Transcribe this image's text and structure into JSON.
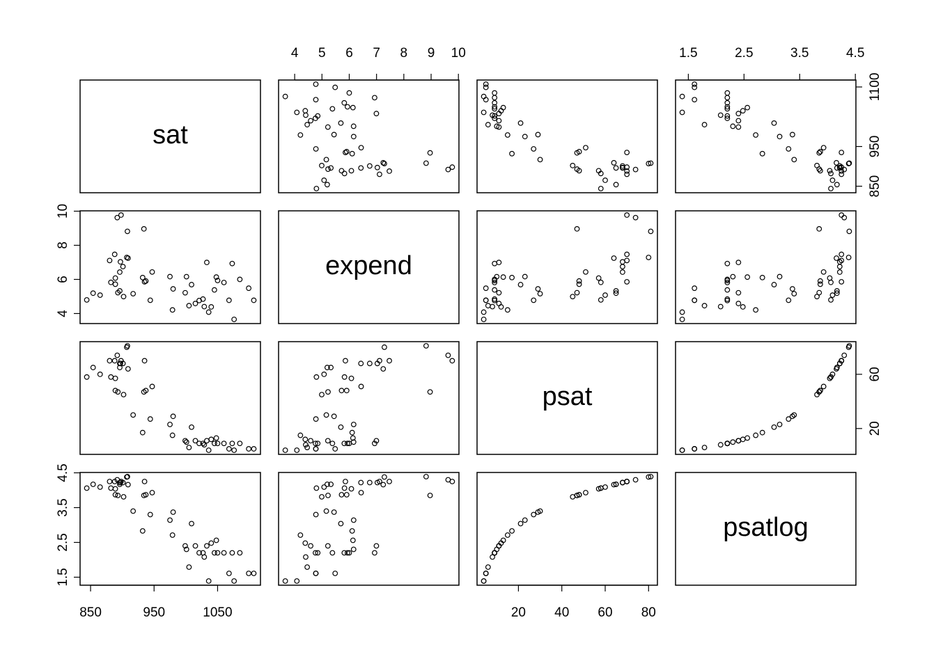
{
  "chart_data": {
    "type": "scatter-matrix",
    "variables": [
      {
        "name": "sat",
        "values": [
          1029,
          934,
          944,
          1005,
          902,
          980,
          908,
          897,
          889,
          854,
          889,
          979,
          1048,
          882,
          1099,
          1060,
          999,
          1021,
          896,
          909,
          907,
          1033,
          1085,
          1036,
          1045,
          1009,
          1050,
          917,
          935,
          898,
          1015,
          892,
          865,
          1107,
          975,
          1027,
          947,
          880,
          888,
          844,
          1068,
          1040,
          893,
          1076,
          901,
          896,
          937,
          932,
          1073,
          1001
        ],
        "lim": [
          833.5,
          1117.5
        ],
        "xticks": [
          850,
          950,
          1050
        ],
        "yticks": [
          850,
          950,
          1100
        ]
      },
      {
        "name": "expend",
        "values": [
          4.405,
          8.963,
          4.778,
          4.459,
          4.992,
          5.443,
          8.817,
          7.03,
          5.718,
          5.193,
          6.078,
          4.21,
          6.136,
          5.826,
          5.483,
          5.817,
          5.217,
          4.761,
          6.428,
          7.245,
          7.287,
          6.994,
          6.0,
          4.08,
          5.383,
          5.692,
          5.935,
          5.16,
          5.859,
          9.774,
          4.586,
          9.623,
          5.077,
          4.775,
          6.162,
          4.845,
          6.436,
          7.109,
          7.469,
          4.797,
          4.775,
          4.388,
          5.222,
          3.656,
          6.75,
          5.327,
          5.906,
          6.107,
          6.93,
          6.16
        ],
        "lim": [
          3.41,
          10.02
        ],
        "xticks": [
          4,
          5,
          6,
          7,
          8,
          9,
          10
        ],
        "yticks": [
          4,
          6,
          8,
          10
        ]
      },
      {
        "name": "psat",
        "values": [
          8,
          47,
          27,
          6,
          45,
          29,
          81,
          68,
          48,
          65,
          57,
          15,
          13,
          58,
          5,
          9,
          11,
          9,
          68,
          64,
          80,
          11,
          9,
          4,
          9,
          21,
          9,
          30,
          70,
          70,
          11,
          74,
          60,
          5,
          23,
          9,
          51,
          70,
          70,
          58,
          5,
          12,
          47,
          4,
          68,
          65,
          48,
          17,
          9,
          10
        ],
        "lim": [
          0.92,
          84.08
        ],
        "xticks": [
          20,
          40,
          60,
          80
        ],
        "yticks": [
          20,
          60
        ]
      },
      {
        "name": "psatlog",
        "values": [
          2.08,
          3.85,
          3.3,
          1.79,
          3.81,
          3.37,
          4.39,
          4.22,
          3.87,
          4.17,
          4.04,
          2.71,
          2.56,
          4.06,
          1.61,
          2.2,
          2.4,
          2.2,
          4.22,
          4.16,
          4.38,
          2.4,
          2.2,
          1.39,
          2.2,
          3.04,
          2.2,
          3.4,
          4.25,
          4.25,
          2.4,
          4.3,
          4.09,
          1.61,
          3.14,
          2.2,
          3.93,
          4.25,
          4.25,
          4.06,
          1.61,
          2.48,
          3.85,
          1.39,
          4.22,
          4.17,
          3.87,
          2.83,
          2.2,
          2.3
        ],
        "lim": [
          1.27,
          4.51
        ],
        "xticks": [
          1.5,
          2.5,
          3.5,
          4.5
        ],
        "yticks": [
          1.5,
          2.5,
          3.5,
          4.5
        ]
      }
    ]
  }
}
